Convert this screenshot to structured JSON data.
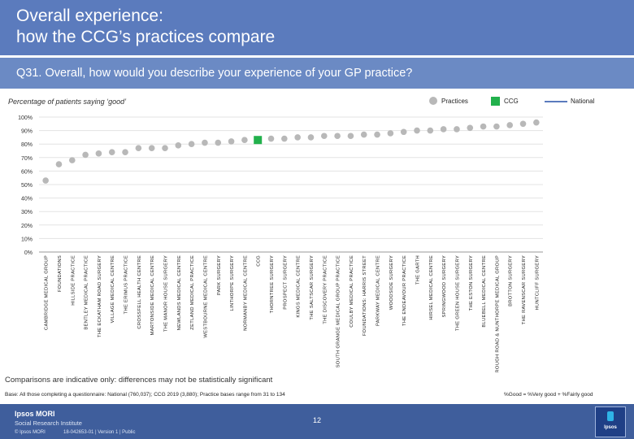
{
  "header": {
    "title_line1": "Overall experience:",
    "title_line2": "how the CCG’s practices compare",
    "question": "Q31. Overall, how would you describe your experience of your GP practice?"
  },
  "chart_meta": {
    "subtitle": "Percentage of patients saying ‘good’",
    "legend_practices": "Practices",
    "legend_ccg": "CCG",
    "legend_national": "National"
  },
  "chart_data": {
    "type": "scatter",
    "title": "Percentage of patients saying ‘good’",
    "xlabel": "",
    "ylabel": "",
    "ylim": [
      0,
      100
    ],
    "yticks": [
      "0%",
      "10%",
      "20%",
      "30%",
      "40%",
      "50%",
      "60%",
      "70%",
      "80%",
      "90%",
      "100%"
    ],
    "highlight_category": "CCG",
    "categories": [
      "CAMBRIDGE MEDICAL GROUP",
      "FOUNDATIONS",
      "HILLSIDE PRACTICE",
      "BENTLEY MEDICAL PRACTICE",
      "THE ECKATHAM ROAD SURGERY",
      "VILLAGE MEDICAL CENTRE",
      "THE ERIMUS PRACTICE",
      "CROSSFELL HEALTH CENTRE",
      "MARTONSIDE MEDICAL CENTRE",
      "THE MANOR HOUSE SURGERY",
      "NEWLANDS MEDICAL CENTRE",
      "ZETLAND MEDICAL PRACTICE",
      "WESTBOURNE MEDICAL CENTRE",
      "PARK SURGERY",
      "LINTHORPE SURGERY",
      "NORMANBY MEDICAL CENTRE",
      "CCG",
      "THORNTREE SURGERY",
      "PROSPECT SURGERY",
      "KINGS MEDICAL CENTRE",
      "THE SALTSCAR SURGERY",
      "THE DISCOVERY PRACTICE",
      "SOUTH GRANGE MEDICAL GROUP PRACTICE",
      "COULBY MEDICAL PRACTICE",
      "FOUNDATIONS: HARRIS STREET",
      "PARKWAY MEDICAL CENTRE",
      "WOODSIDE SURGERY",
      "THE ENDEAVOUR PRACTICE",
      "THE GARTH",
      "HIRSEL MEDICAL CENTRE",
      "SPRINGWOOD SURGERY",
      "THE GREEN HOUSE SURGERY",
      "THE ESTON SURGERY",
      "BLUEBELL MEDICAL CENTRE",
      "BOROUGH ROAD & NUNTHORPE MEDICAL GROUP",
      "BROTTON SURGERY",
      "THE RAVENSCAR SURGERY",
      "HUNTCLIFF SURGERY"
    ],
    "values": [
      53,
      65,
      68,
      72,
      73,
      74,
      74,
      77,
      77,
      77,
      79,
      80,
      81,
      81,
      82,
      83,
      83,
      84,
      84,
      85,
      85,
      86,
      86,
      86,
      87,
      87,
      88,
      89,
      90,
      90,
      91,
      91,
      92,
      93,
      93,
      94,
      95,
      96
    ]
  },
  "notes": {
    "comparisons": "Comparisons are indicative only: differences may not be statistically significant",
    "base": "Base: All those completing a questionnaire: National (760,037); CCG 2019 (3,880); Practice bases range from 31 to 134",
    "definition": "%Good = %Very good + %Fairly good"
  },
  "footer": {
    "brand": "Ipsos MORI",
    "brand_sub": "Social Research Institute",
    "copyright": "© Ipsos MORI",
    "reference": "18-042653-01 | Version 1 | Public",
    "page_number": "12",
    "logo_text": "Ipsos"
  },
  "colors": {
    "header_bg": "#5b7bbd",
    "practice_dot": "#b8b8b8",
    "ccg_marker": "#22b14c",
    "national_line": "#5b7bbd"
  }
}
